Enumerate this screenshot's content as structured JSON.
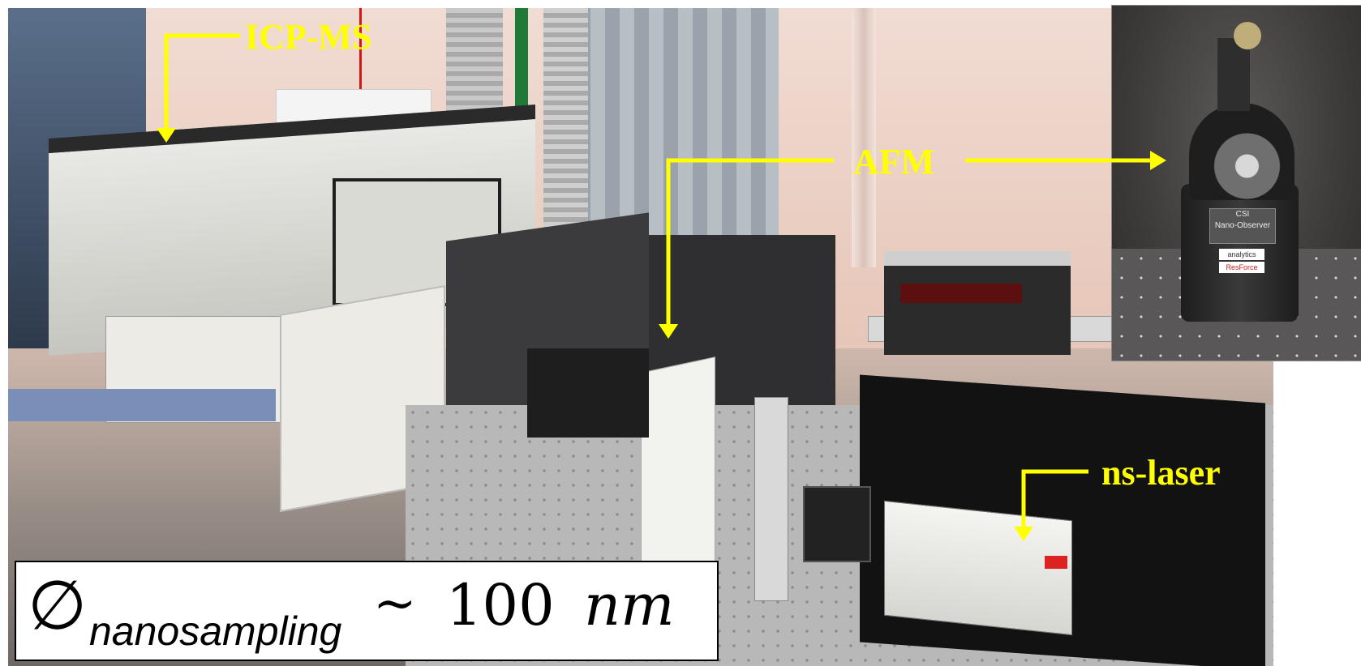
{
  "labels": {
    "icp_ms": "ICP-MS",
    "afm": "AFM",
    "ns_laser": "ns-laser"
  },
  "formula": {
    "symbol": "∅",
    "subscript": "nanosampling",
    "relation": "~",
    "value": "100",
    "unit": "nm"
  },
  "inset": {
    "plate_line1": "CSI",
    "plate_line2": "Nano-Observer",
    "sticker1": "analytics",
    "sticker2": "ResForce"
  },
  "colors": {
    "annotation": "#ffff00",
    "wall": "#e8c9bc",
    "formula_bg": "#ffffff"
  }
}
